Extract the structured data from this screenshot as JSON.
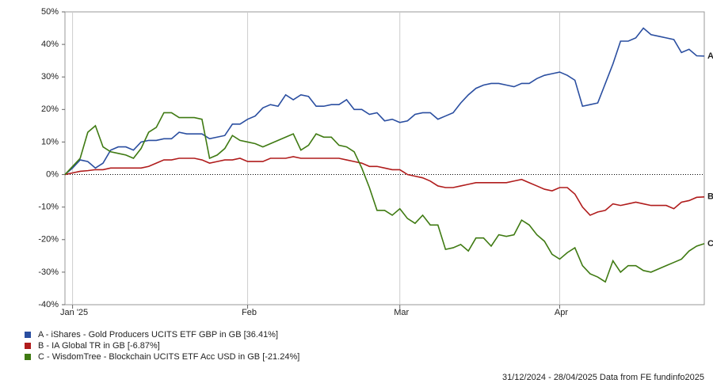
{
  "chart_data": {
    "type": "line",
    "categories": [
      null,
      "Jan '25",
      null,
      null,
      null,
      null,
      null,
      null,
      null,
      null,
      null,
      null,
      null,
      null,
      null,
      null,
      null,
      null,
      null,
      null,
      null,
      null,
      null,
      null,
      "Feb",
      null,
      null,
      null,
      null,
      null,
      null,
      null,
      null,
      null,
      null,
      null,
      null,
      null,
      null,
      null,
      null,
      null,
      null,
      null,
      "Mar",
      null,
      null,
      null,
      null,
      null,
      null,
      null,
      null,
      null,
      null,
      null,
      null,
      null,
      null,
      null,
      null,
      null,
      null,
      null,
      null,
      "Apr",
      null,
      null,
      null,
      null,
      null,
      null,
      null,
      null,
      null,
      null,
      null,
      null,
      null,
      null,
      null,
      null,
      null,
      null,
      null
    ],
    "ylim": [
      -40,
      50
    ],
    "yticks": [
      {
        "value": -40,
        "label": "-40%"
      },
      {
        "value": -30,
        "label": "-30%"
      },
      {
        "value": -20,
        "label": "-20%"
      },
      {
        "value": -10,
        "label": "-10%"
      },
      {
        "value": 0,
        "label": "0%"
      },
      {
        "value": 10,
        "label": "10%"
      },
      {
        "value": 20,
        "label": "20%"
      },
      {
        "value": 30,
        "label": "30%"
      },
      {
        "value": 40,
        "label": "40%"
      },
      {
        "value": 50,
        "label": "50%"
      }
    ],
    "series": [
      {
        "name": "A - iShares - Gold Producers UCITS ETF GBP in GB [36.41%]",
        "label": "A",
        "color": "#2a4ea0",
        "values": [
          0,
          2,
          4.5,
          4,
          2,
          3.5,
          7.5,
          8.5,
          8.5,
          7.5,
          10,
          10.5,
          10.5,
          11,
          11,
          13,
          12.5,
          12.5,
          12.5,
          11,
          11.5,
          12,
          15.5,
          15.5,
          17,
          18,
          20.5,
          21.5,
          21,
          24.5,
          23,
          24.5,
          24,
          21,
          21,
          21.5,
          21.5,
          23,
          20,
          20,
          18.5,
          19,
          16.5,
          17,
          16,
          16.5,
          18.5,
          19,
          19,
          17,
          18,
          19,
          22,
          24.5,
          26.5,
          27.5,
          28,
          28,
          27.5,
          27,
          28,
          28,
          29.5,
          30.5,
          31,
          31.5,
          30.5,
          29,
          21,
          21.5,
          22,
          28,
          34,
          41,
          41,
          42,
          45,
          43,
          42.5,
          42,
          41.5,
          37.5,
          38.5,
          36.5,
          36.41
        ]
      },
      {
        "name": "B - IA Global TR in GB [-6.87%]",
        "label": "B",
        "color": "#b01c1c",
        "values": [
          0,
          0.5,
          1,
          1.2,
          1.5,
          1.5,
          2,
          2,
          2,
          2,
          2,
          2.5,
          3.5,
          4.5,
          4.5,
          5,
          5,
          5,
          4.5,
          3.5,
          4,
          4.5,
          4.5,
          5,
          4,
          4,
          4,
          5,
          5,
          5,
          5.5,
          5,
          5,
          5,
          5,
          5,
          5,
          4.5,
          4,
          3.5,
          2.5,
          2.5,
          2,
          1.5,
          1.5,
          0,
          -0.5,
          -1,
          -2,
          -3.5,
          -4,
          -4,
          -3.5,
          -3,
          -2.5,
          -2.5,
          -2.5,
          -2.5,
          -2.5,
          -2,
          -1.5,
          -2.5,
          -3.5,
          -4.5,
          -5,
          -4,
          -4,
          -6,
          -10,
          -12.5,
          -11.5,
          -11,
          -9,
          -9.5,
          -9,
          -8.5,
          -9,
          -9.5,
          -9.5,
          -9.5,
          -10.5,
          -8.5,
          -8,
          -7,
          -6.87
        ]
      },
      {
        "name": "C - WisdomTree - Blockchain UCITS ETF Acc USD in GB [-21.24%]",
        "label": "C",
        "color": "#3f7a12",
        "values": [
          0,
          2.5,
          5,
          13,
          15,
          8.5,
          7,
          6.5,
          6,
          5,
          8,
          13,
          14.5,
          19,
          19,
          17.5,
          17.5,
          17.5,
          17,
          5,
          6,
          8,
          12,
          10.5,
          10,
          9.5,
          8.5,
          9.5,
          10.5,
          11.5,
          12.5,
          7.5,
          9,
          12.5,
          11.5,
          11.5,
          9,
          8.5,
          7,
          2,
          -4,
          -11,
          -11,
          -12.5,
          -10.5,
          -13.5,
          -15,
          -12.5,
          -15.5,
          -15.5,
          -23,
          -22.5,
          -21.5,
          -23.5,
          -19.5,
          -19.5,
          -22,
          -18.5,
          -19,
          -18.5,
          -14,
          -15.5,
          -18.5,
          -20.5,
          -24.5,
          -26,
          -24,
          -22.5,
          -28,
          -30.5,
          -31.5,
          -33,
          -26.5,
          -30,
          -28,
          -28,
          -29.5,
          -30,
          -29,
          -28,
          -27,
          -26,
          -23.5,
          -22,
          -21.24
        ]
      }
    ],
    "source": "31/12/2024 - 28/04/2025 Data from FE fundinfo2025"
  }
}
